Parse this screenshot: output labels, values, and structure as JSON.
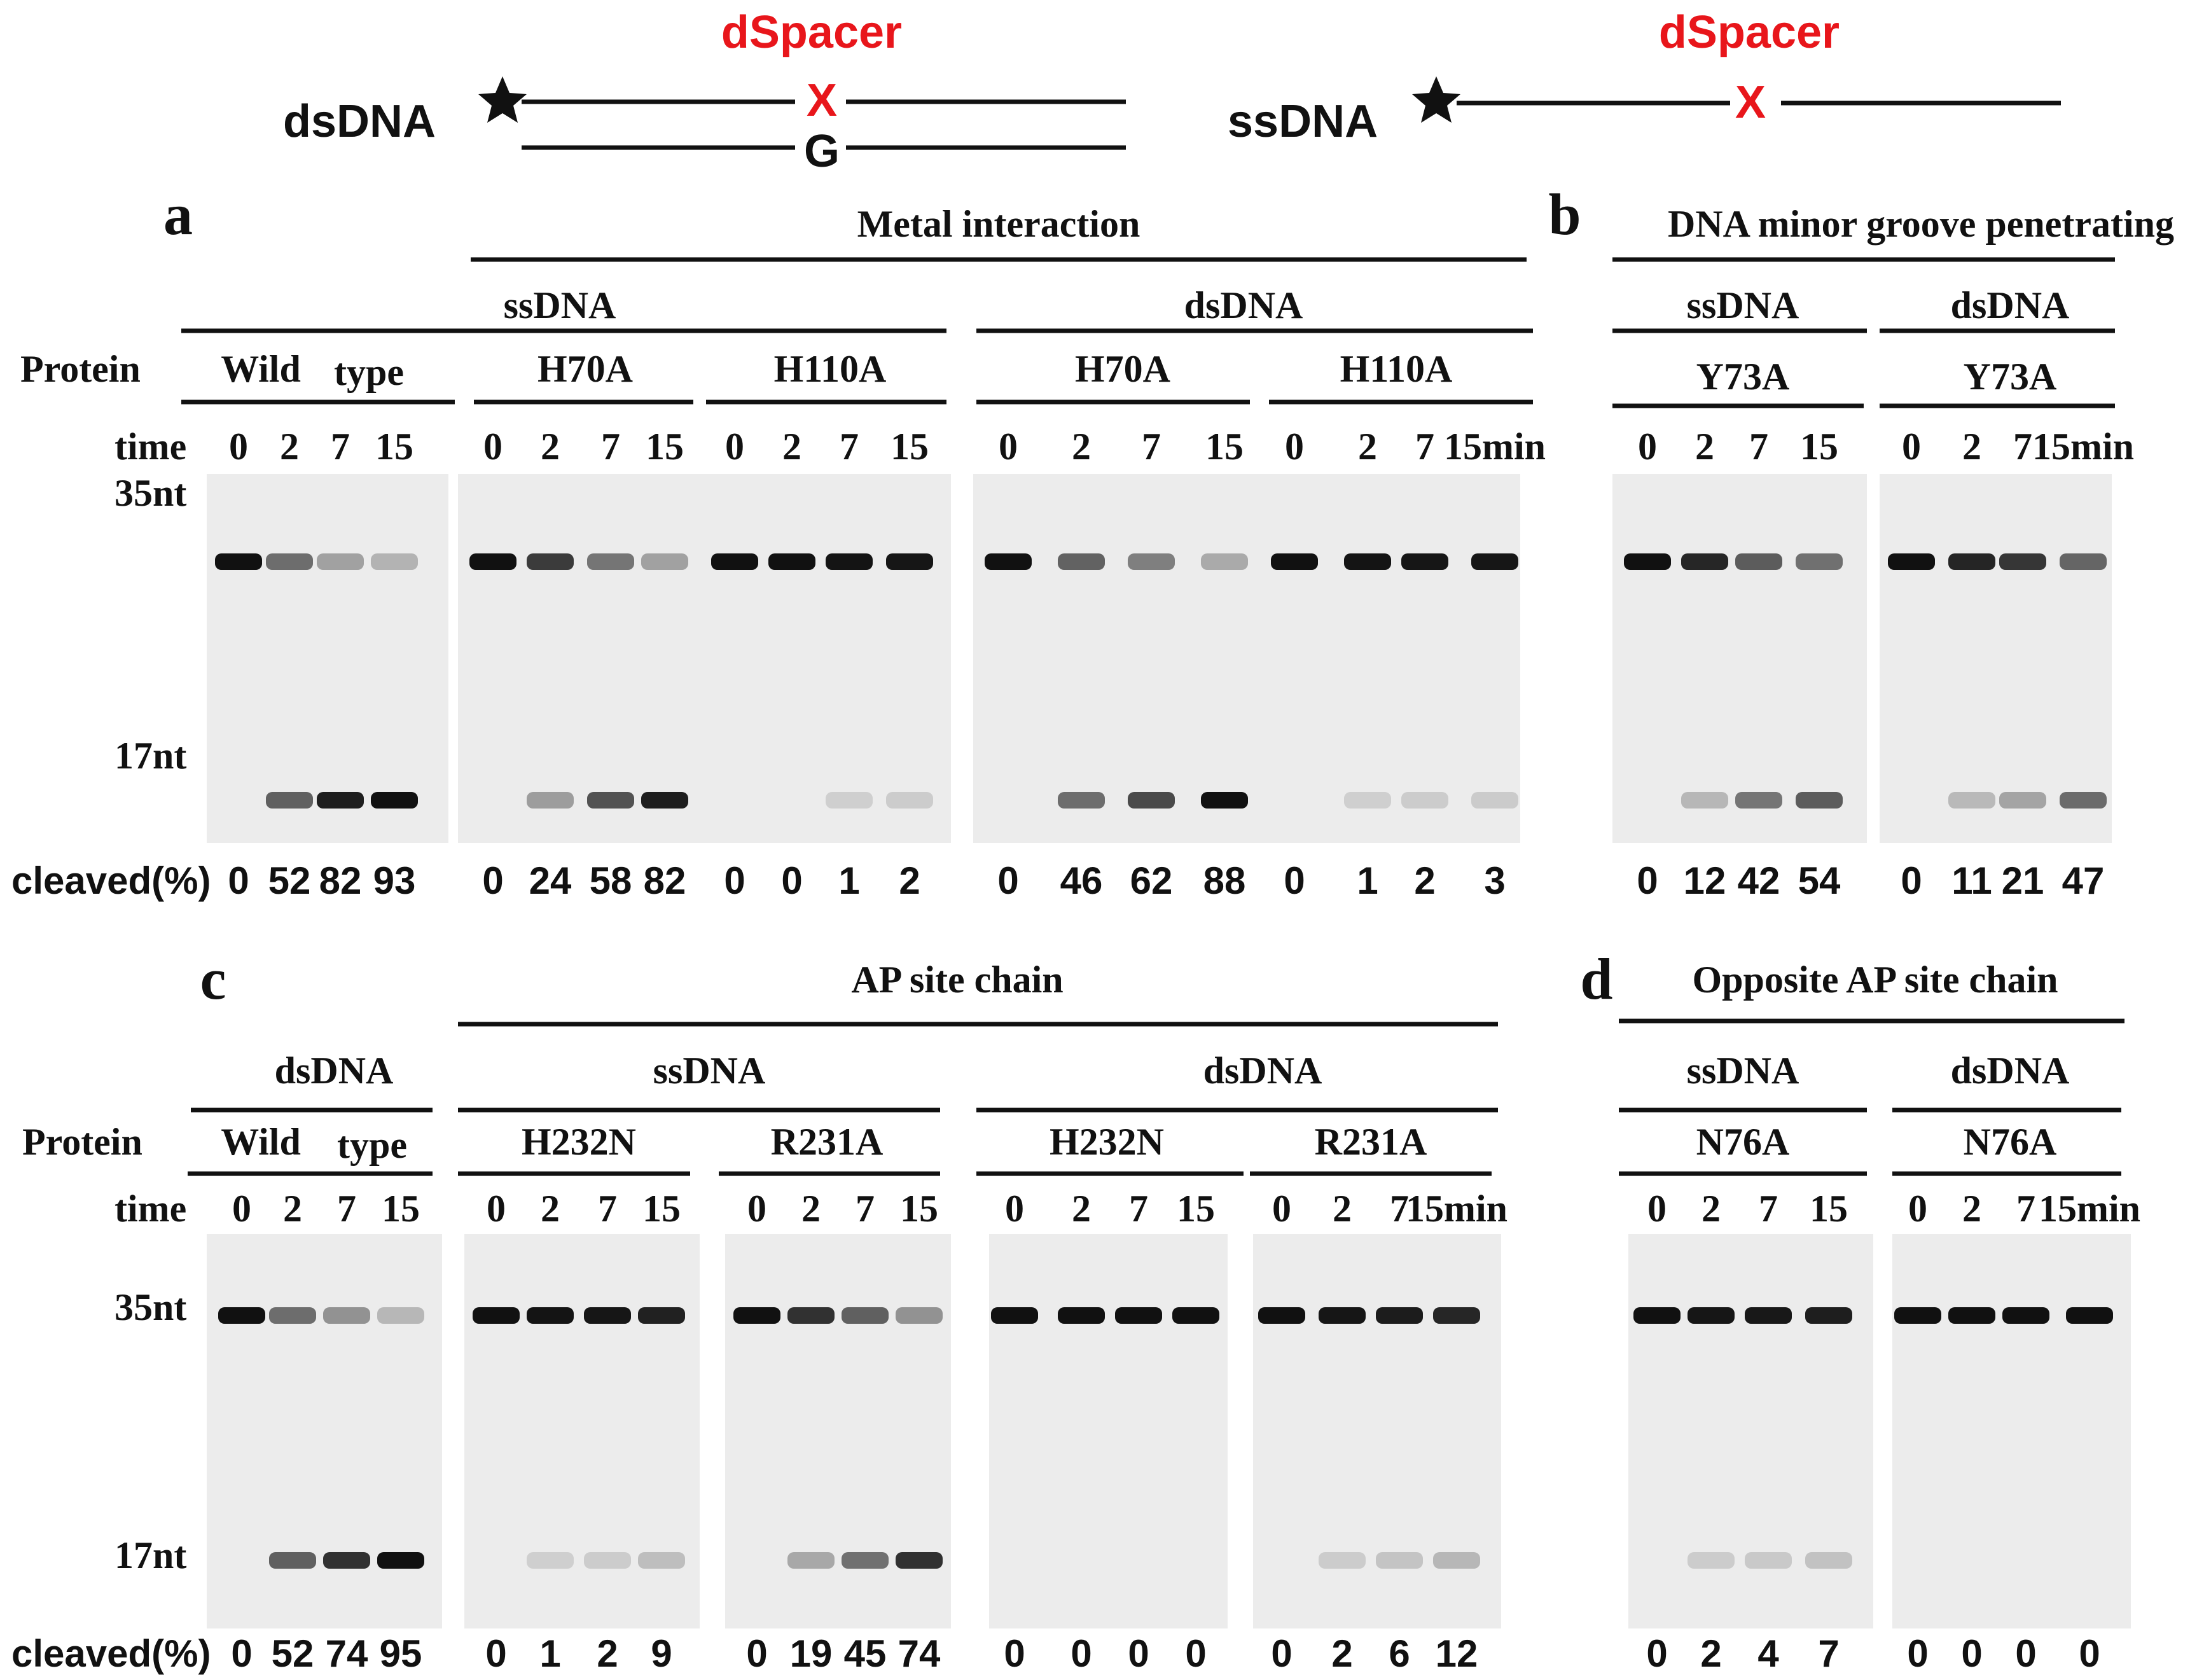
{
  "schematic": {
    "ds_label": "dsDNA",
    "ss_label": "ssDNA",
    "spacer_label": "dSpacer",
    "ap_mark": "X",
    "opposite_base": "G",
    "end_label_icon": "star-icon",
    "accent_color": "#e8161b"
  },
  "panels": {
    "a": "a",
    "b": "b",
    "c": "c",
    "d": "d"
  },
  "headers": {
    "metal": "Metal interaction",
    "minor": "DNA minor groove penetrating",
    "ap_chain": "AP site chain",
    "opp_chain": "Opposite AP site chain"
  },
  "row_labels": {
    "protein": "Protein",
    "time": "time",
    "cleaved": "cleaved(%)",
    "nt35": "35nt",
    "nt17": "17nt"
  },
  "top": {
    "groups": [
      "ssDNA",
      "dsDNA",
      "ssDNA",
      "dsDNA"
    ],
    "proteins": [
      "Wild",
      "type",
      "H70A",
      "H110A",
      "H70A",
      "H110A",
      "Y73A",
      "Y73A"
    ],
    "times": [
      "0",
      "2",
      "7",
      "15",
      "0",
      "2",
      "7",
      "15",
      "0",
      "2",
      "7",
      "15",
      "0",
      "2",
      "7",
      "15",
      "0",
      "2",
      "7",
      "15min",
      "0",
      "2",
      "7",
      "15",
      "0",
      "2",
      "7",
      "15min"
    ],
    "cleaved": [
      "0",
      "52",
      "82",
      "93",
      "0",
      "24",
      "58",
      "82",
      "0",
      "0",
      "1",
      "2",
      "0",
      "46",
      "62",
      "88",
      "0",
      "1",
      "2",
      "3",
      "0",
      "12",
      "42",
      "54",
      "0",
      "11",
      "21",
      "47"
    ]
  },
  "bottom": {
    "groups": [
      "dsDNA",
      "ssDNA",
      "dsDNA",
      "ssDNA",
      "dsDNA"
    ],
    "proteins": [
      "Wild",
      "type",
      "H232N",
      "R231A",
      "H232N",
      "R231A",
      "N76A",
      "N76A"
    ],
    "times": [
      "0",
      "2",
      "7",
      "15",
      "0",
      "2",
      "7",
      "15",
      "0",
      "2",
      "7",
      "15",
      "0",
      "2",
      "7",
      "15",
      "0",
      "2",
      "7",
      "15min",
      "0",
      "2",
      "7",
      "15",
      "0",
      "2",
      "7",
      "15min"
    ],
    "cleaved": [
      "0",
      "52",
      "74",
      "95",
      "0",
      "1",
      "2",
      "9",
      "0",
      "19",
      "45",
      "74",
      "0",
      "0",
      "0",
      "0",
      "0",
      "2",
      "6",
      "12",
      "0",
      "2",
      "4",
      "7",
      "0",
      "0",
      "0",
      "0"
    ]
  }
}
